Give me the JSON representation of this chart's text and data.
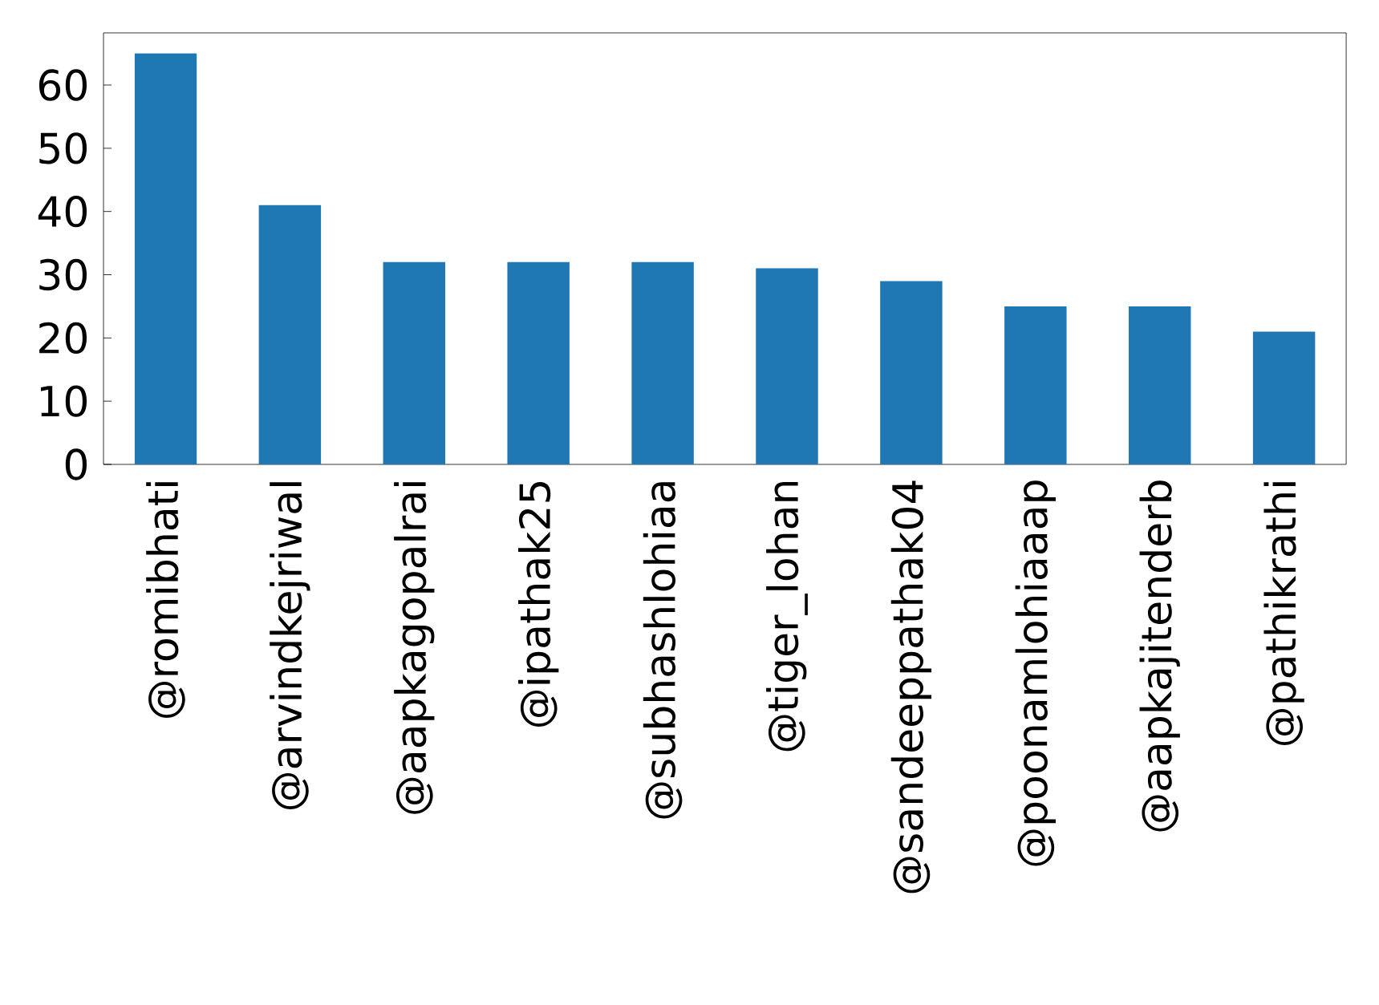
{
  "chart_data": {
    "type": "bar",
    "categories": [
      "@romibhati",
      "@arvindkejriwal",
      "@aapkagopalrai",
      "@ipathak25",
      "@subhashlohiaa",
      "@tiger_lohan",
      "@sandeeppathak04",
      "@poonamlohiaaap",
      "@aapkajitenderb",
      "@pathikrathi"
    ],
    "values": [
      65,
      41,
      32,
      32,
      32,
      31,
      29,
      25,
      25,
      21
    ],
    "color": "#1f77b4",
    "ylim": [
      0,
      68.25
    ],
    "yticks": [
      0,
      10,
      20,
      30,
      40,
      50,
      60
    ]
  }
}
